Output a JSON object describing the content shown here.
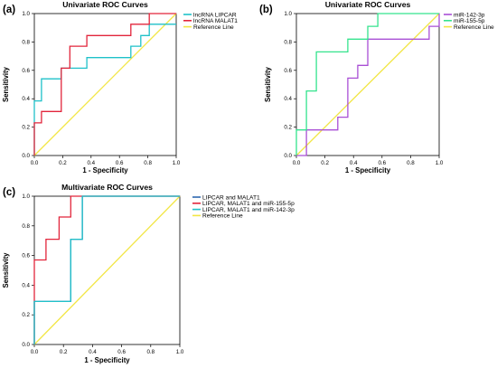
{
  "colors": {
    "cyan": "#1fc1c9",
    "red": "#e2253b",
    "yellow": "#f2e645",
    "purple": "#a94fd5",
    "green": "#34e38d",
    "blue": "#2f68b0",
    "frame": "#000000"
  },
  "chart_data": [
    {
      "panel_label": "(a)",
      "type": "line",
      "title": "Univariate ROC Curves",
      "xlabel": "1 - Specificity",
      "ylabel": "Sensitivity",
      "xlim": [
        0,
        1
      ],
      "ylim": [
        0,
        1
      ],
      "xticks": [
        "0.0",
        "0.2",
        "0.4",
        "0.6",
        "0.8",
        "1.0"
      ],
      "yticks": [
        "0.0",
        "0.2",
        "0.4",
        "0.6",
        "0.8",
        "1.0"
      ],
      "grid": false,
      "legend_position": "top-right",
      "series": [
        {
          "name": "lncRNA LIPCAR",
          "color": "#1fc1c9",
          "x": [
            0,
            0,
            0.05,
            0.05,
            0.19,
            0.19,
            0.37,
            0.37,
            0.68,
            0.68,
            0.75,
            0.75,
            0.81,
            0.81,
            1.0
          ],
          "y": [
            0,
            0.385,
            0.385,
            0.54,
            0.54,
            0.615,
            0.615,
            0.69,
            0.69,
            0.77,
            0.77,
            0.845,
            0.845,
            0.925,
            0.925
          ]
        },
        {
          "name": "lncRNA MALAT1",
          "color": "#e2253b",
          "x": [
            0,
            0,
            0.05,
            0.05,
            0.19,
            0.19,
            0.25,
            0.25,
            0.37,
            0.37,
            0.68,
            0.68,
            0.81,
            0.81,
            1.0
          ],
          "y": [
            0,
            0.23,
            0.23,
            0.31,
            0.31,
            0.615,
            0.615,
            0.77,
            0.77,
            0.845,
            0.845,
            0.925,
            0.925,
            1.0,
            1.0
          ]
        },
        {
          "name": "Reference Line",
          "color": "#f2e645",
          "x": [
            0,
            1
          ],
          "y": [
            0,
            1
          ]
        }
      ]
    },
    {
      "panel_label": "(b)",
      "type": "line",
      "title": "Univariate ROC Curves",
      "xlabel": "1 - Specificity",
      "ylabel": "Sensitivity",
      "xlim": [
        0,
        1
      ],
      "ylim": [
        0,
        1
      ],
      "xticks": [
        "0.0",
        "0.2",
        "0.4",
        "0.6",
        "0.8",
        "1.0"
      ],
      "yticks": [
        "0.0",
        "0.2",
        "0.4",
        "0.6",
        "0.8",
        "1.0"
      ],
      "grid": false,
      "legend_position": "top-right",
      "series": [
        {
          "name": "miR-142-3p",
          "color": "#a94fd5",
          "x": [
            0,
            0.07,
            0.07,
            0.29,
            0.29,
            0.36,
            0.36,
            0.43,
            0.43,
            0.5,
            0.5,
            0.93,
            0.93,
            1.0,
            1.0
          ],
          "y": [
            0,
            0,
            0.18,
            0.18,
            0.27,
            0.27,
            0.545,
            0.545,
            0.635,
            0.635,
            0.82,
            0.82,
            0.91,
            0.91,
            1.0
          ]
        },
        {
          "name": "miR-155-5p",
          "color": "#34e38d",
          "x": [
            0,
            0,
            0.07,
            0.07,
            0.14,
            0.14,
            0.36,
            0.36,
            0.5,
            0.5,
            0.57,
            0.57,
            1.0
          ],
          "y": [
            0,
            0.18,
            0.18,
            0.455,
            0.455,
            0.73,
            0.73,
            0.82,
            0.82,
            0.91,
            0.91,
            1.0,
            1.0
          ]
        },
        {
          "name": "Reference Line",
          "color": "#f2e645",
          "x": [
            0,
            1
          ],
          "y": [
            0,
            1
          ]
        }
      ]
    },
    {
      "panel_label": "(c)",
      "type": "line",
      "title": "Multivariate ROC Curves",
      "xlabel": "1 - Specificity",
      "ylabel": "Sensitivity",
      "xlim": [
        0,
        1
      ],
      "ylim": [
        0,
        1
      ],
      "xticks": [
        "0.0",
        "0.2",
        "0.4",
        "0.6",
        "0.8",
        "1.0"
      ],
      "yticks": [
        "0.0",
        "0.2",
        "0.4",
        "0.6",
        "0.8",
        "1.0"
      ],
      "grid": false,
      "legend_position": "top-right",
      "series": [
        {
          "name": "LIPCAR and MALAT1",
          "color": "#2f68b0",
          "x": [
            0,
            0,
            0.25,
            0.25,
            0.33,
            0.33,
            1.0
          ],
          "y": [
            0,
            0.29,
            0.29,
            0.71,
            0.71,
            1.0,
            1.0
          ]
        },
        {
          "name": "LIPCAR, MALAT1 and miR-155-5p",
          "color": "#e2253b",
          "x": [
            0,
            0,
            0.08,
            0.08,
            0.17,
            0.17,
            0.25,
            0.25,
            1.0
          ],
          "y": [
            0,
            0.57,
            0.57,
            0.71,
            0.71,
            0.86,
            0.86,
            1.0,
            1.0
          ]
        },
        {
          "name": "LIPCAR, MALAT1 and miR-142-3p",
          "color": "#1fc1c9",
          "x": [
            0,
            0,
            0.25,
            0.25,
            0.33,
            0.33,
            1.0
          ],
          "y": [
            0,
            0.29,
            0.29,
            0.71,
            0.71,
            1.0,
            1.0
          ]
        },
        {
          "name": "Reference Line",
          "color": "#f2e645",
          "x": [
            0,
            1
          ],
          "y": [
            0,
            1
          ]
        }
      ]
    }
  ]
}
